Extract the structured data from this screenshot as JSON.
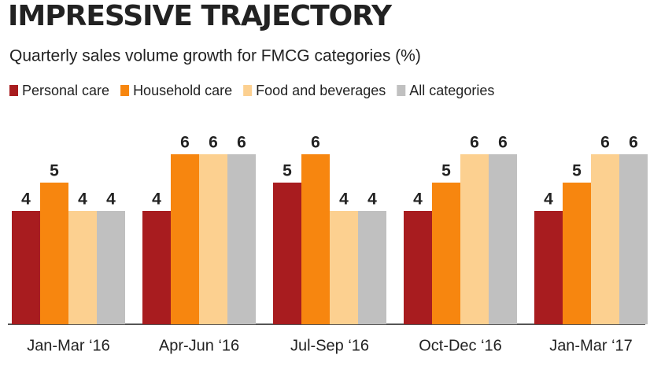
{
  "chart_data": {
    "type": "bar",
    "title": "IMPRESSIVE TRAJECTORY",
    "subtitle": "Quarterly sales volume growth for FMCG categories (%)",
    "categories": [
      "Jan-Mar ‘16",
      "Apr-Jun ‘16",
      "Jul-Sep ‘16",
      "Oct-Dec ‘16",
      "Jan-Mar ‘17"
    ],
    "series": [
      {
        "name": "Personal care",
        "color": "#a81c1f",
        "values": [
          4,
          4,
          5,
          4,
          4
        ]
      },
      {
        "name": "Household care",
        "color": "#f7860f",
        "values": [
          5,
          6,
          6,
          5,
          5
        ]
      },
      {
        "name": "Food and beverages",
        "color": "#fcd090",
        "values": [
          4,
          6,
          4,
          6,
          6
        ]
      },
      {
        "name": "All categories",
        "color": "#c0c0c0",
        "values": [
          4,
          6,
          4,
          6,
          6
        ]
      }
    ]
  }
}
